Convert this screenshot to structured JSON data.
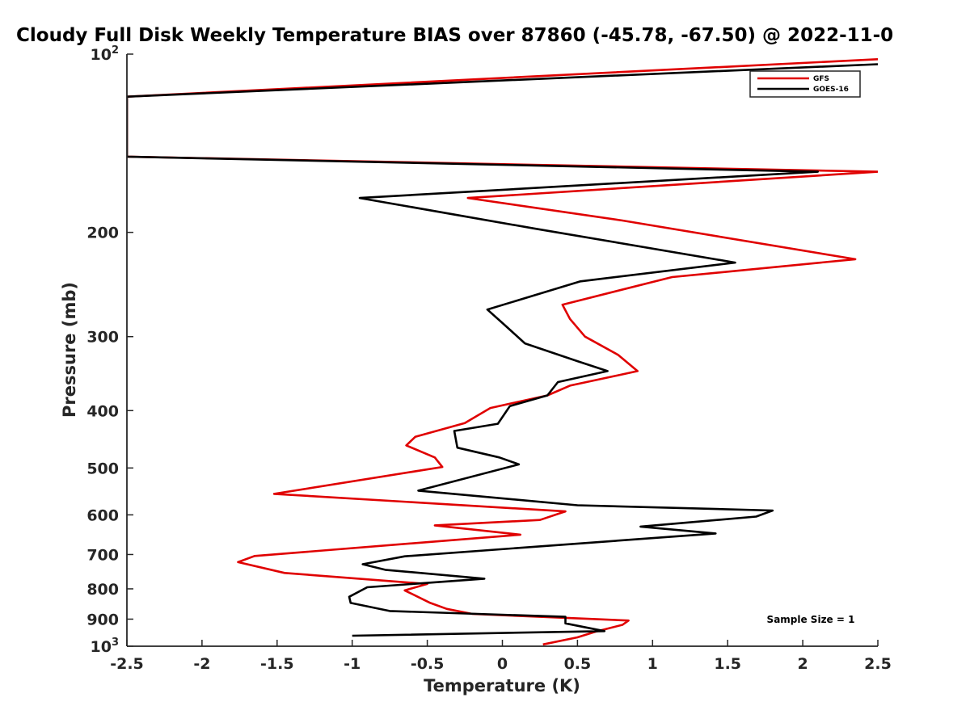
{
  "chart_data": {
    "type": "line",
    "title": "Cloudy Full Disk Weekly Temperature BIAS over 87860 (-45.78, -67.50) @ 2022-11-0",
    "xlabel": "Temperature (K)",
    "ylabel": "Pressure (mb)",
    "xlim": [
      -2.5,
      2.5
    ],
    "ylim": [
      100,
      1000
    ],
    "y_scale": "log",
    "y_reversed": true,
    "x_ticks": [
      "-2.5",
      "-2",
      "-1.5",
      "-1",
      "-0.5",
      "0",
      "0.5",
      "1",
      "1.5",
      "2",
      "2.5"
    ],
    "y_ticks": [
      {
        "value": 100,
        "base": "10",
        "exp": "2"
      },
      {
        "value": 200,
        "label": "200"
      },
      {
        "value": 300,
        "label": "300"
      },
      {
        "value": 400,
        "label": "400"
      },
      {
        "value": 500,
        "label": "500"
      },
      {
        "value": 600,
        "label": "600"
      },
      {
        "value": 700,
        "label": "700"
      },
      {
        "value": 800,
        "label": "800"
      },
      {
        "value": 900,
        "label": "900"
      },
      {
        "value": 1000,
        "base": "10",
        "exp": "3"
      }
    ],
    "legend_position": "top-right",
    "annotation": "Sample Size = 1",
    "series": [
      {
        "name": "GFS",
        "color": "#e00000",
        "points": [
          [
            2.5,
            102
          ],
          [
            -2.5,
            118
          ],
          [
            -2.5,
            149
          ],
          [
            2.5,
            158
          ],
          [
            -0.23,
            175
          ],
          [
            0.8,
            191
          ],
          [
            2.35,
            222
          ],
          [
            1.13,
            238
          ],
          [
            0.4,
            265
          ],
          [
            0.45,
            280
          ],
          [
            0.55,
            300
          ],
          [
            0.77,
            322
          ],
          [
            0.9,
            343
          ],
          [
            0.45,
            363
          ],
          [
            0.3,
            377
          ],
          [
            -0.08,
            396
          ],
          [
            -0.25,
            420
          ],
          [
            -0.58,
            443
          ],
          [
            -0.64,
            458
          ],
          [
            -0.45,
            480
          ],
          [
            -0.4,
            498
          ],
          [
            -1.52,
            553
          ],
          [
            0.42,
            592
          ],
          [
            0.25,
            612
          ],
          [
            -0.45,
            625
          ],
          [
            0.12,
            648
          ],
          [
            -1.65,
            704
          ],
          [
            -1.76,
            721
          ],
          [
            -1.45,
            752
          ],
          [
            -0.5,
            785
          ],
          [
            -0.65,
            805
          ],
          [
            -0.48,
            845
          ],
          [
            -0.37,
            865
          ],
          [
            -0.2,
            882
          ],
          [
            0.84,
            905
          ],
          [
            0.8,
            920
          ],
          [
            0.62,
            945
          ],
          [
            0.5,
            966
          ],
          [
            0.27,
            993
          ]
        ]
      },
      {
        "name": "GOES-16",
        "color": "#000000",
        "points": [
          [
            2.5,
            104
          ],
          [
            -2.5,
            118
          ],
          [
            -2.5,
            149
          ],
          [
            2.1,
            158
          ],
          [
            -0.95,
            175
          ],
          [
            0.21,
            197
          ],
          [
            1.55,
            225
          ],
          [
            0.52,
            242
          ],
          [
            -0.1,
            270
          ],
          [
            0.01,
            286
          ],
          [
            0.15,
            308
          ],
          [
            0.5,
            330
          ],
          [
            0.7,
            343
          ],
          [
            0.37,
            358
          ],
          [
            0.3,
            377
          ],
          [
            0.05,
            393
          ],
          [
            -0.03,
            421
          ],
          [
            -0.32,
            433
          ],
          [
            -0.3,
            462
          ],
          [
            -0.02,
            480
          ],
          [
            0.11,
            493
          ],
          [
            -0.56,
            546
          ],
          [
            0.5,
            578
          ],
          [
            1.8,
            590
          ],
          [
            1.69,
            604
          ],
          [
            0.92,
            628
          ],
          [
            1.42,
            645
          ],
          [
            -0.65,
            705
          ],
          [
            -0.93,
            727
          ],
          [
            -0.78,
            743
          ],
          [
            -0.12,
            769
          ],
          [
            -0.9,
            795
          ],
          [
            -1.02,
            825
          ],
          [
            -1.01,
            845
          ],
          [
            -0.75,
            872
          ],
          [
            0.42,
            892
          ],
          [
            0.42,
            915
          ],
          [
            0.68,
            943
          ],
          [
            -1.0,
            960
          ]
        ]
      }
    ]
  }
}
